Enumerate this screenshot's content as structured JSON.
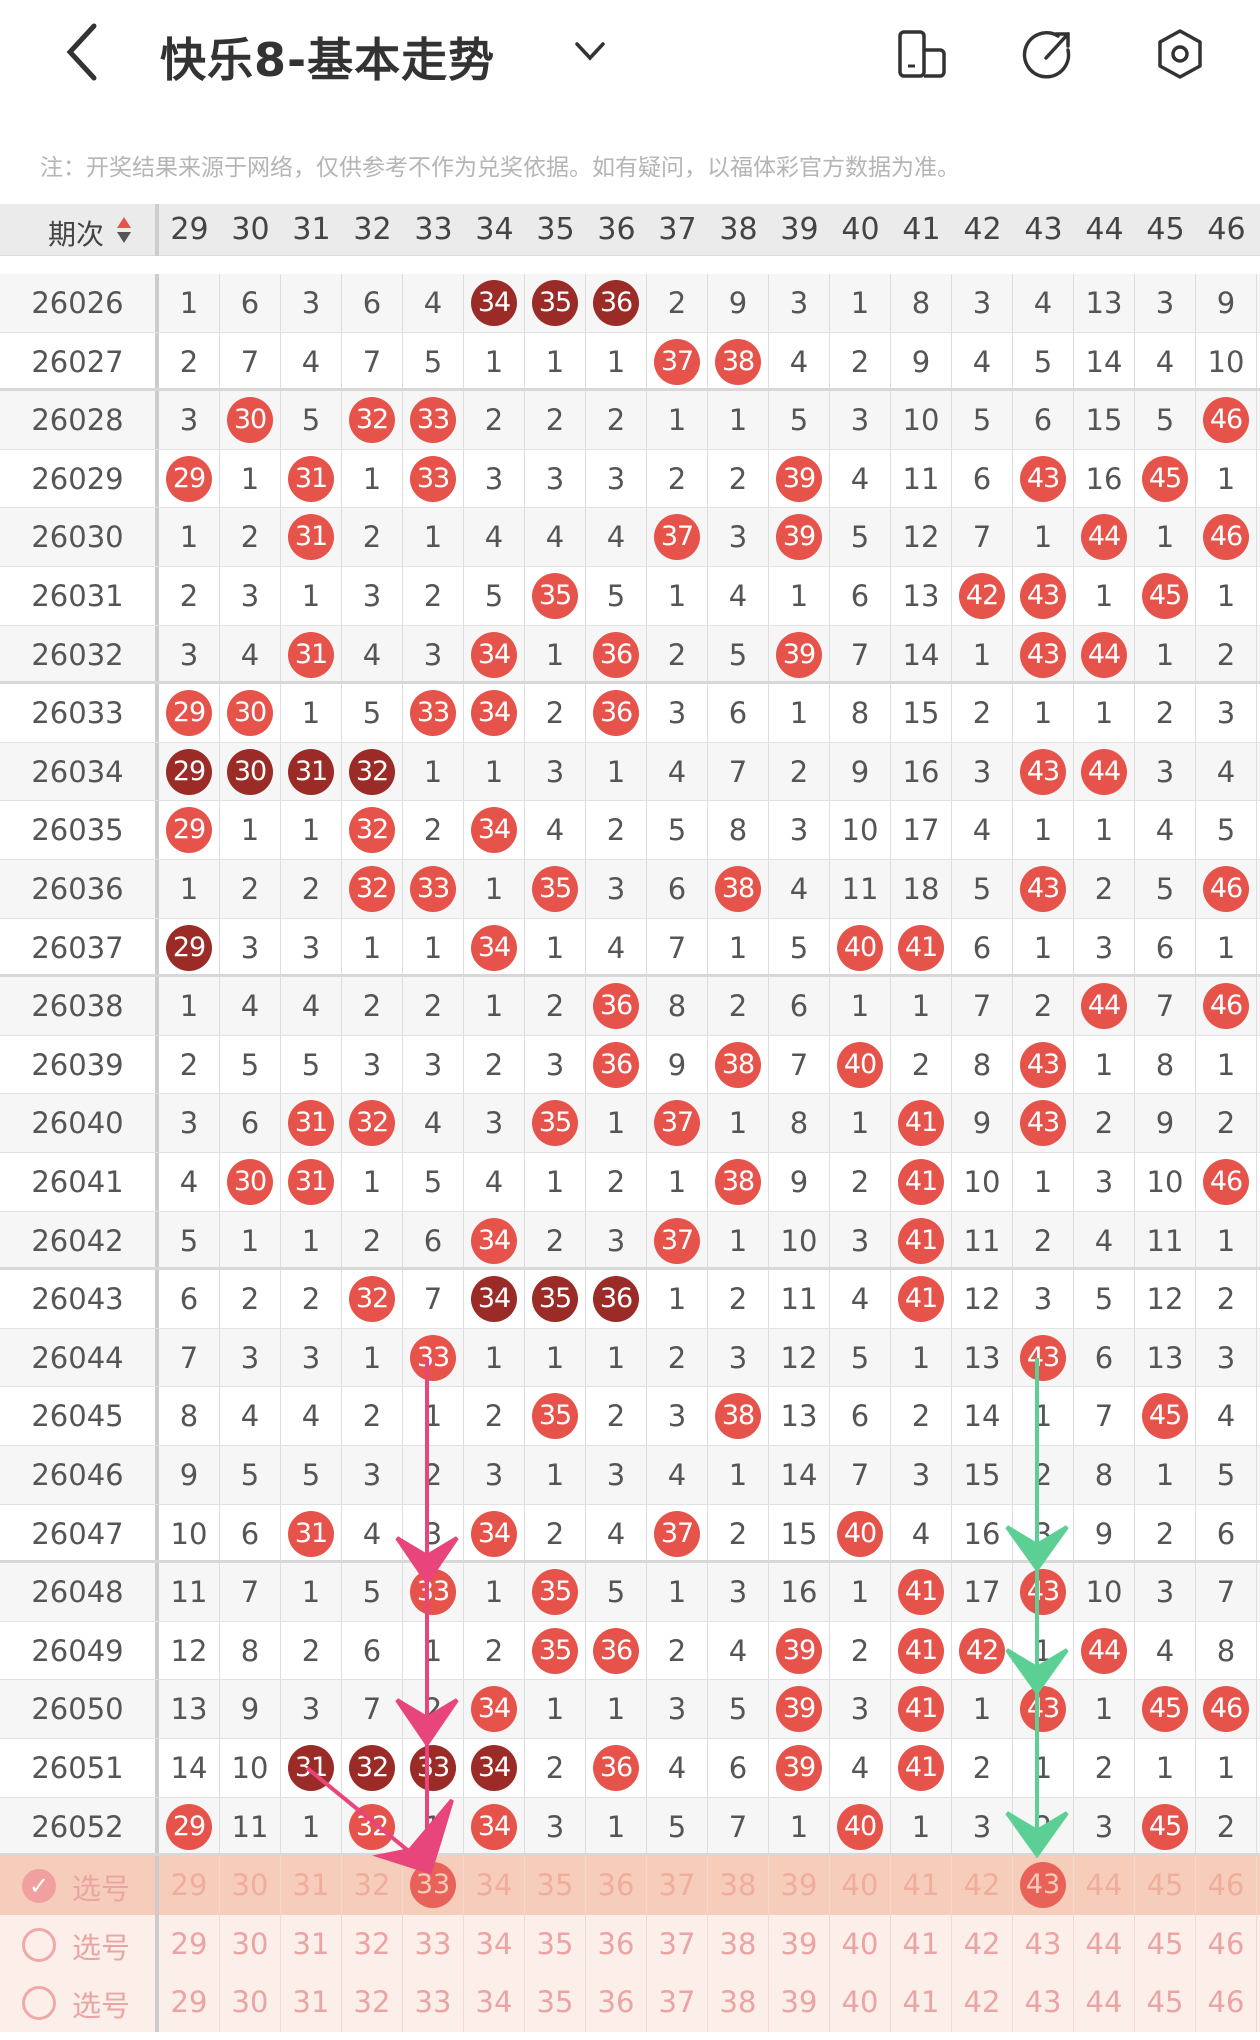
{
  "header": {
    "title": "快乐8-基本走势",
    "icons": [
      "back-icon",
      "chevron-down-icon",
      "phone-layout-icon",
      "share-icon",
      "settings-icon"
    ]
  },
  "notice": "注：开奖结果来源于网络，仅供参考不作为兑奖依据。如有疑问，以福体彩官方数据为准。",
  "table": {
    "issue_header": "期次",
    "columns": [
      29,
      30,
      31,
      32,
      33,
      34,
      35,
      36,
      37,
      38,
      39,
      40,
      41,
      42,
      43,
      44,
      45,
      46
    ],
    "colors": {
      "hit": "#e5534b",
      "hit_consecutive": "#9a2b27",
      "arrow_pink": "#e8457c",
      "arrow_green": "#5ccf95"
    },
    "rows": [
      {
        "issue": "26026",
        "cells": [
          1,
          6,
          3,
          6,
          4,
          34,
          35,
          36,
          2,
          9,
          3,
          1,
          8,
          3,
          4,
          13,
          3,
          9
        ],
        "hits": [
          34,
          35,
          36
        ],
        "dark": [
          34,
          35,
          36
        ]
      },
      {
        "issue": "26027",
        "cells": [
          2,
          7,
          4,
          7,
          5,
          1,
          1,
          1,
          37,
          38,
          4,
          2,
          9,
          4,
          5,
          14,
          4,
          10
        ],
        "hits": [
          37,
          38
        ],
        "dark": []
      },
      {
        "issue": "26028",
        "cells": [
          3,
          30,
          5,
          32,
          33,
          2,
          2,
          2,
          1,
          1,
          5,
          3,
          10,
          5,
          6,
          15,
          5,
          46
        ],
        "hits": [
          30,
          32,
          33,
          46
        ],
        "dark": []
      },
      {
        "issue": "26029",
        "cells": [
          29,
          1,
          31,
          1,
          33,
          3,
          3,
          3,
          2,
          2,
          39,
          4,
          11,
          6,
          43,
          16,
          45,
          1
        ],
        "hits": [
          29,
          31,
          33,
          39,
          43,
          45
        ],
        "dark": []
      },
      {
        "issue": "26030",
        "cells": [
          1,
          2,
          31,
          2,
          1,
          4,
          4,
          4,
          37,
          3,
          39,
          5,
          12,
          7,
          1,
          44,
          1,
          46
        ],
        "hits": [
          31,
          37,
          39,
          44,
          46
        ],
        "dark": []
      },
      {
        "issue": "26031",
        "cells": [
          2,
          3,
          1,
          3,
          2,
          5,
          35,
          5,
          1,
          4,
          1,
          6,
          13,
          42,
          43,
          1,
          45,
          1
        ],
        "hits": [
          35,
          42,
          43,
          45
        ],
        "dark": []
      },
      {
        "issue": "26032",
        "cells": [
          3,
          4,
          31,
          4,
          3,
          34,
          1,
          36,
          2,
          5,
          39,
          7,
          14,
          1,
          43,
          44,
          1,
          2
        ],
        "hits": [
          31,
          34,
          36,
          39,
          43,
          44
        ],
        "dark": []
      },
      {
        "issue": "26033",
        "cells": [
          29,
          30,
          1,
          5,
          33,
          34,
          2,
          36,
          3,
          6,
          1,
          8,
          15,
          2,
          1,
          1,
          2,
          3
        ],
        "hits": [
          29,
          30,
          33,
          34,
          36
        ],
        "dark": []
      },
      {
        "issue": "26034",
        "cells": [
          29,
          30,
          31,
          32,
          1,
          1,
          3,
          1,
          4,
          7,
          2,
          9,
          16,
          3,
          43,
          44,
          3,
          4
        ],
        "hits": [
          29,
          30,
          31,
          32,
          43,
          44
        ],
        "dark": [
          29,
          30,
          31,
          32
        ]
      },
      {
        "issue": "26035",
        "cells": [
          29,
          1,
          1,
          32,
          2,
          34,
          4,
          2,
          5,
          8,
          3,
          10,
          17,
          4,
          1,
          1,
          4,
          5
        ],
        "hits": [
          29,
          32,
          34
        ],
        "dark": []
      },
      {
        "issue": "26036",
        "cells": [
          1,
          2,
          2,
          32,
          33,
          1,
          35,
          3,
          6,
          38,
          4,
          11,
          18,
          5,
          43,
          2,
          5,
          46
        ],
        "hits": [
          32,
          33,
          35,
          38,
          43,
          46
        ],
        "dark": []
      },
      {
        "issue": "26037",
        "cells": [
          29,
          3,
          3,
          1,
          1,
          34,
          1,
          4,
          7,
          1,
          5,
          40,
          41,
          6,
          1,
          3,
          6,
          1
        ],
        "hits": [
          29,
          34,
          40,
          41
        ],
        "dark": [
          29
        ]
      },
      {
        "issue": "26038",
        "cells": [
          1,
          4,
          4,
          2,
          2,
          1,
          2,
          36,
          8,
          2,
          6,
          1,
          1,
          7,
          2,
          44,
          7,
          46
        ],
        "hits": [
          36,
          44,
          46
        ],
        "dark": []
      },
      {
        "issue": "26039",
        "cells": [
          2,
          5,
          5,
          3,
          3,
          2,
          3,
          36,
          9,
          38,
          7,
          40,
          2,
          8,
          43,
          1,
          8,
          1
        ],
        "hits": [
          36,
          38,
          40,
          43
        ],
        "dark": []
      },
      {
        "issue": "26040",
        "cells": [
          3,
          6,
          31,
          32,
          4,
          3,
          35,
          1,
          37,
          1,
          8,
          1,
          41,
          9,
          43,
          2,
          9,
          2
        ],
        "hits": [
          31,
          32,
          35,
          37,
          41,
          43
        ],
        "dark": []
      },
      {
        "issue": "26041",
        "cells": [
          4,
          30,
          31,
          1,
          5,
          4,
          1,
          2,
          1,
          38,
          9,
          2,
          41,
          10,
          1,
          3,
          10,
          46
        ],
        "hits": [
          30,
          31,
          38,
          41,
          46
        ],
        "dark": []
      },
      {
        "issue": "26042",
        "cells": [
          5,
          1,
          1,
          2,
          6,
          34,
          2,
          3,
          37,
          1,
          10,
          3,
          41,
          11,
          2,
          4,
          11,
          1
        ],
        "hits": [
          34,
          37,
          41
        ],
        "dark": []
      },
      {
        "issue": "26043",
        "cells": [
          6,
          2,
          2,
          32,
          7,
          34,
          35,
          36,
          1,
          2,
          11,
          4,
          41,
          12,
          3,
          5,
          12,
          2
        ],
        "hits": [
          32,
          34,
          35,
          36,
          41
        ],
        "dark": [
          34,
          35,
          36
        ]
      },
      {
        "issue": "26044",
        "cells": [
          7,
          3,
          3,
          1,
          33,
          1,
          1,
          1,
          2,
          3,
          12,
          5,
          1,
          13,
          43,
          6,
          13,
          3
        ],
        "hits": [
          33,
          43
        ],
        "dark": []
      },
      {
        "issue": "26045",
        "cells": [
          8,
          4,
          4,
          2,
          1,
          2,
          35,
          2,
          3,
          38,
          13,
          6,
          2,
          14,
          1,
          7,
          45,
          4
        ],
        "hits": [
          35,
          38,
          45
        ],
        "dark": []
      },
      {
        "issue": "26046",
        "cells": [
          9,
          5,
          5,
          3,
          2,
          3,
          1,
          3,
          4,
          1,
          14,
          7,
          3,
          15,
          2,
          8,
          1,
          5
        ],
        "hits": [],
        "dark": []
      },
      {
        "issue": "26047",
        "cells": [
          10,
          6,
          31,
          4,
          3,
          34,
          2,
          4,
          37,
          2,
          15,
          40,
          4,
          16,
          3,
          9,
          2,
          6
        ],
        "hits": [
          31,
          34,
          37,
          40
        ],
        "dark": []
      },
      {
        "issue": "26048",
        "cells": [
          11,
          7,
          1,
          5,
          33,
          1,
          35,
          5,
          1,
          3,
          16,
          1,
          41,
          17,
          43,
          10,
          3,
          7
        ],
        "hits": [
          33,
          35,
          41,
          43
        ],
        "dark": []
      },
      {
        "issue": "26049",
        "cells": [
          12,
          8,
          2,
          6,
          1,
          2,
          35,
          36,
          2,
          4,
          39,
          2,
          41,
          42,
          1,
          44,
          4,
          8
        ],
        "hits": [
          35,
          36,
          39,
          41,
          42,
          44
        ],
        "dark": []
      },
      {
        "issue": "26050",
        "cells": [
          13,
          9,
          3,
          7,
          2,
          34,
          1,
          1,
          3,
          5,
          39,
          3,
          41,
          1,
          43,
          1,
          45,
          46
        ],
        "hits": [
          34,
          39,
          41,
          43,
          45,
          46
        ],
        "dark": []
      },
      {
        "issue": "26051",
        "cells": [
          14,
          10,
          31,
          32,
          33,
          34,
          2,
          36,
          4,
          6,
          39,
          4,
          41,
          2,
          1,
          2,
          1,
          1
        ],
        "hits": [
          31,
          32,
          33,
          34,
          36,
          39,
          41
        ],
        "dark": [
          31,
          32,
          33,
          34
        ]
      },
      {
        "issue": "26052",
        "cells": [
          29,
          11,
          1,
          32,
          1,
          34,
          3,
          1,
          5,
          7,
          1,
          40,
          1,
          3,
          2,
          3,
          45,
          2
        ],
        "hits": [
          29,
          32,
          34,
          40,
          45
        ],
        "dark": []
      }
    ],
    "select_rows": [
      {
        "label": "选号",
        "checked": true,
        "selected": [
          33,
          43
        ]
      },
      {
        "label": "选号",
        "checked": false,
        "selected": []
      },
      {
        "label": "选号",
        "checked": false,
        "selected": []
      }
    ]
  }
}
